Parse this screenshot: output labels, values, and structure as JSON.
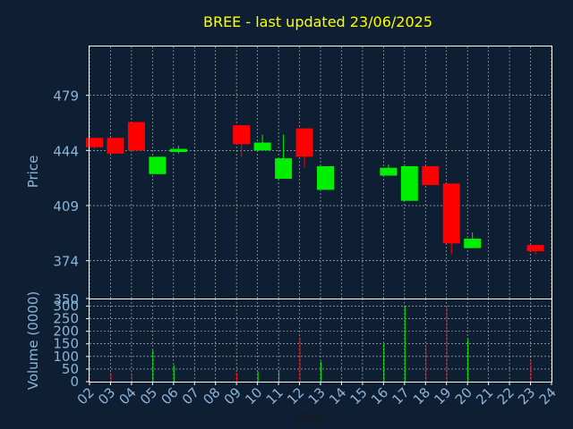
{
  "colors": {
    "background": "#0f1f33",
    "axis": "#ffffff",
    "grid": "#c8c8c8",
    "tick_text": "#8cb4d8",
    "title": "#ffff00",
    "up": "#00ee00",
    "down": "#ff0000"
  },
  "chart_data": [
    {
      "type": "candlestick",
      "title": "BREE - last updated 23/06/2025",
      "ylabel": "Price",
      "ylim": [
        350,
        510
      ],
      "y_ticks": [
        "350",
        "374",
        "409",
        "444",
        "479"
      ],
      "x_ticks": [
        "02",
        "03",
        "04",
        "05",
        "06",
        "07",
        "08",
        "09",
        "10",
        "11",
        "12",
        "13",
        "14",
        "15",
        "16",
        "17",
        "18",
        "19",
        "20",
        "21",
        "22",
        "23",
        "24"
      ],
      "grid": true,
      "candles": [
        {
          "x": "02",
          "open": 452,
          "high": 452,
          "low": 445,
          "close": 446
        },
        {
          "x": "03",
          "open": 452,
          "high": 452,
          "low": 442,
          "close": 442
        },
        {
          "x": "04",
          "open": 462,
          "high": 462,
          "low": 444,
          "close": 444
        },
        {
          "x": "05",
          "open": 429,
          "high": 440,
          "low": 429,
          "close": 440
        },
        {
          "x": "06",
          "open": 443,
          "high": 447,
          "low": 442,
          "close": 445
        },
        {
          "x": "09",
          "open": 460,
          "high": 460,
          "low": 440,
          "close": 448
        },
        {
          "x": "10",
          "open": 444,
          "high": 454,
          "low": 444,
          "close": 449
        },
        {
          "x": "11",
          "open": 426,
          "high": 454,
          "low": 426,
          "close": 439
        },
        {
          "x": "12",
          "open": 458,
          "high": 458,
          "low": 433,
          "close": 440
        },
        {
          "x": "13",
          "open": 419,
          "high": 434,
          "low": 419,
          "close": 434
        },
        {
          "x": "16",
          "open": 428,
          "high": 435,
          "low": 428,
          "close": 433
        },
        {
          "x": "17",
          "open": 412,
          "high": 434,
          "low": 412,
          "close": 434
        },
        {
          "x": "18",
          "open": 434,
          "high": 434,
          "low": 422,
          "close": 422
        },
        {
          "x": "19",
          "open": 423,
          "high": 423,
          "low": 378,
          "close": 385
        },
        {
          "x": "20",
          "open": 382,
          "high": 392,
          "low": 382,
          "close": 388
        },
        {
          "x": "23",
          "open": 384,
          "high": 384,
          "low": 378,
          "close": 380
        }
      ]
    },
    {
      "type": "bar",
      "ylabel": "Volume (0000)",
      "xlabel": "Day",
      "ylim": [
        0,
        330
      ],
      "y_ticks": [
        "0",
        "50",
        "100",
        "150",
        "200",
        "250",
        "300"
      ],
      "x_ticks": [
        "02",
        "03",
        "04",
        "05",
        "06",
        "07",
        "08",
        "09",
        "10",
        "11",
        "12",
        "13",
        "14",
        "15",
        "16",
        "17",
        "18",
        "19",
        "20",
        "21",
        "22",
        "23",
        "24"
      ],
      "grid": true,
      "bars": [
        {
          "x": "02",
          "value": 5,
          "dir": "down"
        },
        {
          "x": "03",
          "value": 35,
          "dir": "down"
        },
        {
          "x": "04",
          "value": 30,
          "dir": "down"
        },
        {
          "x": "05",
          "value": 125,
          "dir": "up"
        },
        {
          "x": "06",
          "value": 65,
          "dir": "up"
        },
        {
          "x": "09",
          "value": 35,
          "dir": "down"
        },
        {
          "x": "10",
          "value": 40,
          "dir": "up"
        },
        {
          "x": "11",
          "value": 45,
          "dir": "up"
        },
        {
          "x": "12",
          "value": 175,
          "dir": "down"
        },
        {
          "x": "13",
          "value": 80,
          "dir": "up"
        },
        {
          "x": "16",
          "value": 150,
          "dir": "up"
        },
        {
          "x": "17",
          "value": 300,
          "dir": "up"
        },
        {
          "x": "18",
          "value": 145,
          "dir": "down"
        },
        {
          "x": "19",
          "value": 300,
          "dir": "down"
        },
        {
          "x": "20",
          "value": 170,
          "dir": "up"
        },
        {
          "x": "23",
          "value": 85,
          "dir": "down"
        }
      ]
    }
  ]
}
